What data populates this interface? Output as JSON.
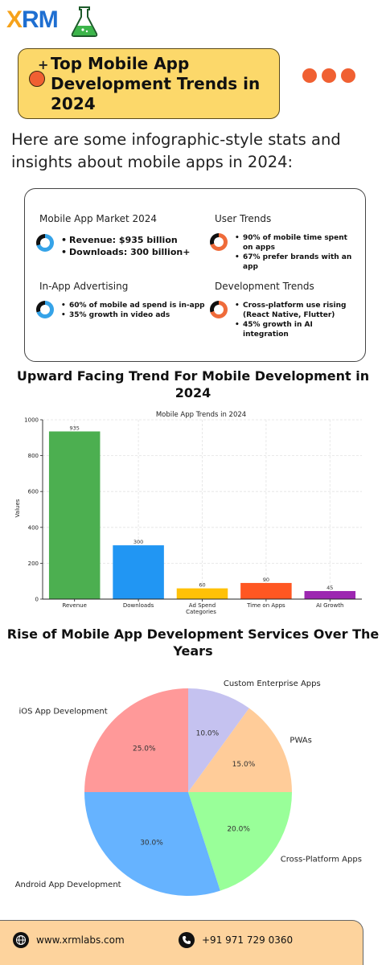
{
  "brand": {
    "logo_letters": [
      "X",
      "R",
      "M"
    ],
    "colors": {
      "logo_orange": "#f6a21a",
      "logo_blue": "#1f6fd1",
      "flask_green": "#3cb54a",
      "title_yellow": "#fcd86a",
      "accent_orange": "#f06032",
      "footer_peach": "#fdd39d"
    }
  },
  "header": {
    "title": "Top Mobile App Development Trends in 2024",
    "menu_icon": "three-dots-icon"
  },
  "intro": "Here are some infographic-style stats and insights about mobile apps in 2024:",
  "stats": {
    "market": {
      "heading": "Mobile App Market 2024",
      "items": [
        "Revenue: $935 billion",
        "Downloads: 300 billion+"
      ]
    },
    "user": {
      "heading": "User Trends",
      "items": [
        "90% of mobile time spent on apps",
        "67% prefer brands with an app"
      ]
    },
    "advertising": {
      "heading": "In-App Advertising",
      "items": [
        "60% of mobile ad spend is in-app",
        "35% growth in video ads"
      ]
    },
    "development": {
      "heading": "Development Trends",
      "items": [
        "Cross-platform use rising (React Native, Flutter)",
        "45% growth in AI integration"
      ]
    }
  },
  "bar_section_title": "Upward Facing Trend For Mobile Development in 2024",
  "pie_section_title": "Rise of Mobile App Development Services Over The Years",
  "chart_data": [
    {
      "type": "bar",
      "title": "Mobile App Trends in 2024",
      "xlabel": "Categories",
      "ylabel": "Values",
      "categories": [
        "Revenue",
        "Downloads",
        "Ad Spend",
        "Time on Apps",
        "AI Growth"
      ],
      "values": [
        935,
        300,
        60,
        90,
        45
      ],
      "colors": [
        "#4caf50",
        "#2196f3",
        "#ffc107",
        "#ff5722",
        "#9c27b0"
      ],
      "ylim": [
        0,
        1000
      ],
      "yticks": [
        0,
        200,
        400,
        600,
        800,
        1000
      ],
      "grid": true
    },
    {
      "type": "pie",
      "slices": [
        {
          "label": "Custom Enterprise Apps",
          "value": 10.0,
          "pct": "10.0%",
          "color": "#c5c2f0"
        },
        {
          "label": "PWAs",
          "value": 15.0,
          "pct": "15.0%",
          "color": "#ffcc99"
        },
        {
          "label": "Cross-Platform Apps",
          "value": 20.0,
          "pct": "20.0%",
          "color": "#99ff99"
        },
        {
          "label": "Android App Development",
          "value": 30.0,
          "pct": "30.0%",
          "color": "#66b3ff"
        },
        {
          "label": "iOS App Development",
          "value": 25.0,
          "pct": "25.0%",
          "color": "#ff9999"
        }
      ]
    }
  ],
  "footer": {
    "website": "www.xrmlabs.com",
    "phone": "+91 971 729 0360"
  }
}
